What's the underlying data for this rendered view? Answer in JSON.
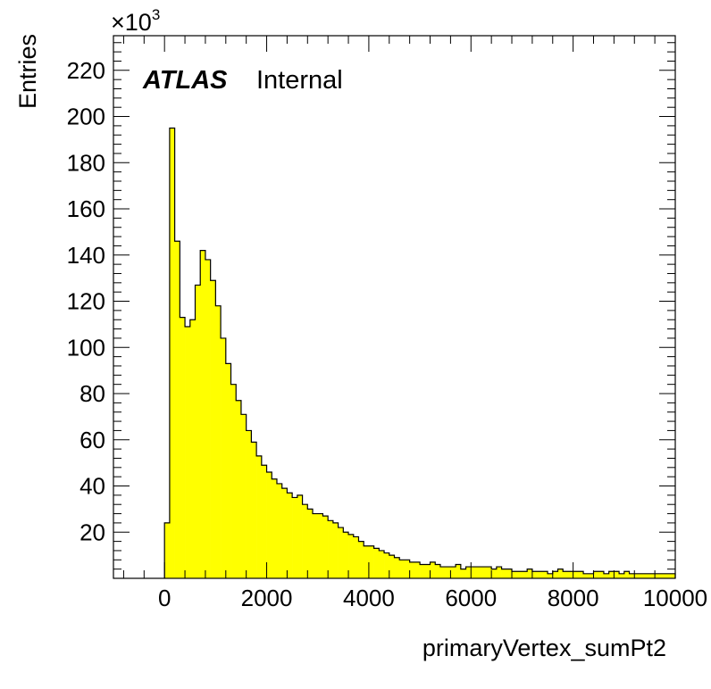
{
  "chart_data": {
    "type": "bar",
    "xlabel": "primaryVertex_sumPt2",
    "ylabel": "Entries",
    "y_multiplier": "×10",
    "y_multiplier_exp": "3",
    "xlim": [
      -1000,
      10000
    ],
    "ylim": [
      0,
      235
    ],
    "x_ticks": [
      0,
      2000,
      4000,
      6000,
      8000,
      10000
    ],
    "y_ticks": [
      20,
      40,
      60,
      80,
      100,
      120,
      140,
      160,
      180,
      200,
      220
    ],
    "bin_width": 100,
    "bin_start": 0,
    "values": [
      24,
      195,
      146,
      113,
      109,
      112,
      127,
      142,
      138,
      129,
      118,
      104,
      93,
      84,
      77,
      71,
      64,
      59,
      53,
      49,
      46,
      43,
      41,
      39,
      37,
      35,
      36,
      32,
      30,
      28,
      28,
      27,
      25,
      24,
      22,
      20,
      19,
      18,
      16,
      14,
      14,
      13,
      12,
      11,
      10,
      9,
      8,
      8,
      7,
      7,
      6,
      6,
      7,
      6,
      5,
      5,
      5,
      6,
      4,
      5,
      5,
      5,
      5,
      5,
      4,
      5,
      4,
      4,
      3,
      3,
      3,
      4,
      3,
      3,
      3,
      2,
      3,
      4,
      3,
      3,
      3,
      3,
      2,
      2,
      3,
      3,
      2,
      3,
      3,
      2,
      3,
      2,
      2,
      2,
      2,
      2,
      2,
      2,
      2,
      2
    ],
    "fill_color": "#ffff00",
    "line_color": "#000000",
    "grid": false
  },
  "annotation": {
    "experiment": "ATLAS",
    "status": "Internal"
  }
}
